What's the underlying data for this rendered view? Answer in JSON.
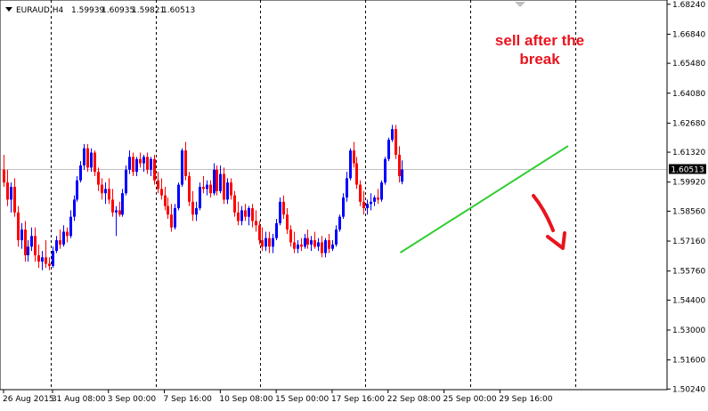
{
  "symbol_header": {
    "symbol": "EURAUD,H4",
    "open": "1.59939",
    "high": "1.60935",
    "low": "1.59821",
    "close": "1.60513"
  },
  "annotation": {
    "line1": "sell after the",
    "line2": "break"
  },
  "current_price_label": "1.60513",
  "chart_data": {
    "type": "candlestick",
    "title": "",
    "ylim": [
      1.5021,
      1.6844
    ],
    "y_ticks": [
      "1.68240",
      "1.66840",
      "1.65480",
      "1.64080",
      "1.62680",
      "1.61320",
      "1.59920",
      "1.58560",
      "1.57160",
      "1.55760",
      "1.54400",
      "1.53000",
      "1.51600",
      "1.50240"
    ],
    "x_labels": [
      "26 Aug 2015",
      "31 Aug 08:00",
      "3 Sep 00:00",
      "7 Sep 16:00",
      "10 Sep 08:00",
      "15 Sep 00:00",
      "17 Sep 16:00",
      "22 Sep 08:00",
      "25 Sep 00:00",
      "29 Sep 16:00"
    ],
    "x_label_index": [
      0,
      14,
      30,
      46,
      62,
      78,
      94,
      110,
      126,
      142
    ],
    "period_separator_index": [
      13.5,
      43.5,
      73.5,
      103.5,
      133.5,
      163.5
    ],
    "current_price": 1.60513,
    "colors": {
      "bull": "#0000ff",
      "bear": "#ff0000",
      "trendline": "#32cd32",
      "arrow": "#e8141e",
      "grid": "#000000"
    },
    "trendline": {
      "from": {
        "index": 113.5,
        "price": 1.5662
      },
      "to": {
        "index": 161.5,
        "price": 1.6161
      }
    },
    "candles": [
      [
        1.605,
        1.612,
        1.597,
        1.599
      ],
      [
        1.599,
        1.605,
        1.588,
        1.591
      ],
      [
        1.591,
        1.599,
        1.585,
        1.597
      ],
      [
        1.597,
        1.601,
        1.583,
        1.585
      ],
      [
        1.585,
        1.588,
        1.569,
        1.572
      ],
      [
        1.572,
        1.58,
        1.568,
        1.577
      ],
      [
        1.577,
        1.581,
        1.562,
        1.565
      ],
      [
        1.565,
        1.572,
        1.562,
        1.569
      ],
      [
        1.569,
        1.578,
        1.567,
        1.574
      ],
      [
        1.574,
        1.578,
        1.562,
        1.565
      ],
      [
        1.565,
        1.57,
        1.559,
        1.562
      ],
      [
        1.562,
        1.567,
        1.558,
        1.564
      ],
      [
        1.564,
        1.572,
        1.559,
        1.561
      ],
      [
        1.561,
        1.564,
        1.558,
        1.56
      ],
      [
        1.56,
        1.569,
        1.559,
        1.567
      ],
      [
        1.567,
        1.574,
        1.566,
        1.572
      ],
      [
        1.572,
        1.577,
        1.568,
        1.57
      ],
      [
        1.57,
        1.579,
        1.569,
        1.576
      ],
      [
        1.576,
        1.578,
        1.571,
        1.574
      ],
      [
        1.574,
        1.586,
        1.573,
        1.583
      ],
      [
        1.583,
        1.593,
        1.581,
        1.591
      ],
      [
        1.591,
        1.602,
        1.59,
        1.6
      ],
      [
        1.6,
        1.609,
        1.599,
        1.607
      ],
      [
        1.607,
        1.617,
        1.605,
        1.615
      ],
      [
        1.615,
        1.617,
        1.604,
        1.606
      ],
      [
        1.606,
        1.615,
        1.604,
        1.613
      ],
      [
        1.613,
        1.614,
        1.602,
        1.604
      ],
      [
        1.604,
        1.606,
        1.595,
        1.598
      ],
      [
        1.598,
        1.601,
        1.591,
        1.594
      ],
      [
        1.594,
        1.599,
        1.589,
        1.596
      ],
      [
        1.596,
        1.601,
        1.589,
        1.591
      ],
      [
        1.591,
        1.596,
        1.583,
        1.585
      ],
      [
        1.585,
        1.588,
        1.574,
        1.586
      ],
      [
        1.586,
        1.59,
        1.583,
        1.584
      ],
      [
        1.584,
        1.596,
        1.583,
        1.594
      ],
      [
        1.594,
        1.607,
        1.593,
        1.605
      ],
      [
        1.605,
        1.614,
        1.603,
        1.611
      ],
      [
        1.611,
        1.613,
        1.602,
        1.604
      ],
      [
        1.604,
        1.611,
        1.602,
        1.61
      ],
      [
        1.61,
        1.613,
        1.606,
        1.608
      ],
      [
        1.608,
        1.612,
        1.604,
        1.611
      ],
      [
        1.611,
        1.613,
        1.603,
        1.605
      ],
      [
        1.605,
        1.611,
        1.602,
        1.61
      ],
      [
        1.61,
        1.612,
        1.598,
        1.6
      ],
      [
        1.6,
        1.604,
        1.594,
        1.596
      ],
      [
        1.596,
        1.601,
        1.591,
        1.593
      ],
      [
        1.593,
        1.597,
        1.586,
        1.588
      ],
      [
        1.588,
        1.592,
        1.582,
        1.584
      ],
      [
        1.584,
        1.589,
        1.576,
        1.578
      ],
      [
        1.578,
        1.589,
        1.577,
        1.587
      ],
      [
        1.587,
        1.599,
        1.586,
        1.598
      ],
      [
        1.598,
        1.615,
        1.597,
        1.614
      ],
      [
        1.614,
        1.618,
        1.6,
        1.602
      ],
      [
        1.602,
        1.604,
        1.588,
        1.59
      ],
      [
        1.59,
        1.595,
        1.581,
        1.584
      ],
      [
        1.584,
        1.59,
        1.581,
        1.587
      ],
      [
        1.587,
        1.599,
        1.586,
        1.597
      ],
      [
        1.597,
        1.602,
        1.594,
        1.596
      ],
      [
        1.596,
        1.6,
        1.593,
        1.598
      ],
      [
        1.598,
        1.6,
        1.592,
        1.594
      ],
      [
        1.594,
        1.608,
        1.593,
        1.605
      ],
      [
        1.605,
        1.607,
        1.593,
        1.595
      ],
      [
        1.595,
        1.607,
        1.594,
        1.603
      ],
      [
        1.603,
        1.606,
        1.589,
        1.591
      ],
      [
        1.591,
        1.601,
        1.589,
        1.599
      ],
      [
        1.599,
        1.601,
        1.591,
        1.593
      ],
      [
        1.593,
        1.595,
        1.583,
        1.585
      ],
      [
        1.585,
        1.59,
        1.579,
        1.581
      ],
      [
        1.581,
        1.588,
        1.579,
        1.586
      ],
      [
        1.586,
        1.589,
        1.581,
        1.583
      ],
      [
        1.583,
        1.588,
        1.579,
        1.587
      ],
      [
        1.587,
        1.589,
        1.578,
        1.581
      ],
      [
        1.581,
        1.586,
        1.576,
        1.579
      ],
      [
        1.579,
        1.581,
        1.57,
        1.572
      ],
      [
        1.572,
        1.578,
        1.567,
        1.569
      ],
      [
        1.569,
        1.576,
        1.567,
        1.573
      ],
      [
        1.573,
        1.576,
        1.566,
        1.569
      ],
      [
        1.569,
        1.575,
        1.566,
        1.573
      ],
      [
        1.573,
        1.582,
        1.572,
        1.58
      ],
      [
        1.58,
        1.592,
        1.579,
        1.59
      ],
      [
        1.59,
        1.593,
        1.582,
        1.584
      ],
      [
        1.584,
        1.587,
        1.575,
        1.577
      ],
      [
        1.577,
        1.579,
        1.569,
        1.571
      ],
      [
        1.571,
        1.576,
        1.566,
        1.568
      ],
      [
        1.568,
        1.572,
        1.566,
        1.57
      ],
      [
        1.57,
        1.573,
        1.567,
        1.569
      ],
      [
        1.569,
        1.575,
        1.568,
        1.573
      ],
      [
        1.573,
        1.577,
        1.568,
        1.57
      ],
      [
        1.57,
        1.574,
        1.567,
        1.572
      ],
      [
        1.572,
        1.576,
        1.568,
        1.569
      ],
      [
        1.569,
        1.573,
        1.567,
        1.571
      ],
      [
        1.571,
        1.574,
        1.564,
        1.566
      ],
      [
        1.566,
        1.573,
        1.564,
        1.572
      ],
      [
        1.572,
        1.575,
        1.566,
        1.568
      ],
      [
        1.568,
        1.572,
        1.567,
        1.57
      ],
      [
        1.57,
        1.579,
        1.569,
        1.577
      ],
      [
        1.577,
        1.584,
        1.576,
        1.583
      ],
      [
        1.583,
        1.594,
        1.582,
        1.592
      ],
      [
        1.592,
        1.604,
        1.59,
        1.601
      ],
      [
        1.601,
        1.615,
        1.6,
        1.614
      ],
      [
        1.614,
        1.618,
        1.606,
        1.608
      ],
      [
        1.608,
        1.611,
        1.596,
        1.598
      ],
      [
        1.598,
        1.6,
        1.588,
        1.59
      ],
      [
        1.59,
        1.595,
        1.584,
        1.587
      ],
      [
        1.587,
        1.591,
        1.584,
        1.589
      ],
      [
        1.589,
        1.594,
        1.586,
        1.59
      ],
      [
        1.59,
        1.593,
        1.588,
        1.592
      ],
      [
        1.592,
        1.596,
        1.589,
        1.591
      ],
      [
        1.591,
        1.6,
        1.59,
        1.599
      ],
      [
        1.599,
        1.611,
        1.598,
        1.61
      ],
      [
        1.61,
        1.62,
        1.609,
        1.619
      ],
      [
        1.619,
        1.626,
        1.618,
        1.624
      ],
      [
        1.624,
        1.626,
        1.61,
        1.612
      ],
      [
        1.612,
        1.616,
        1.599,
        1.602
      ],
      [
        1.5994,
        1.6094,
        1.5982,
        1.6051
      ]
    ]
  }
}
